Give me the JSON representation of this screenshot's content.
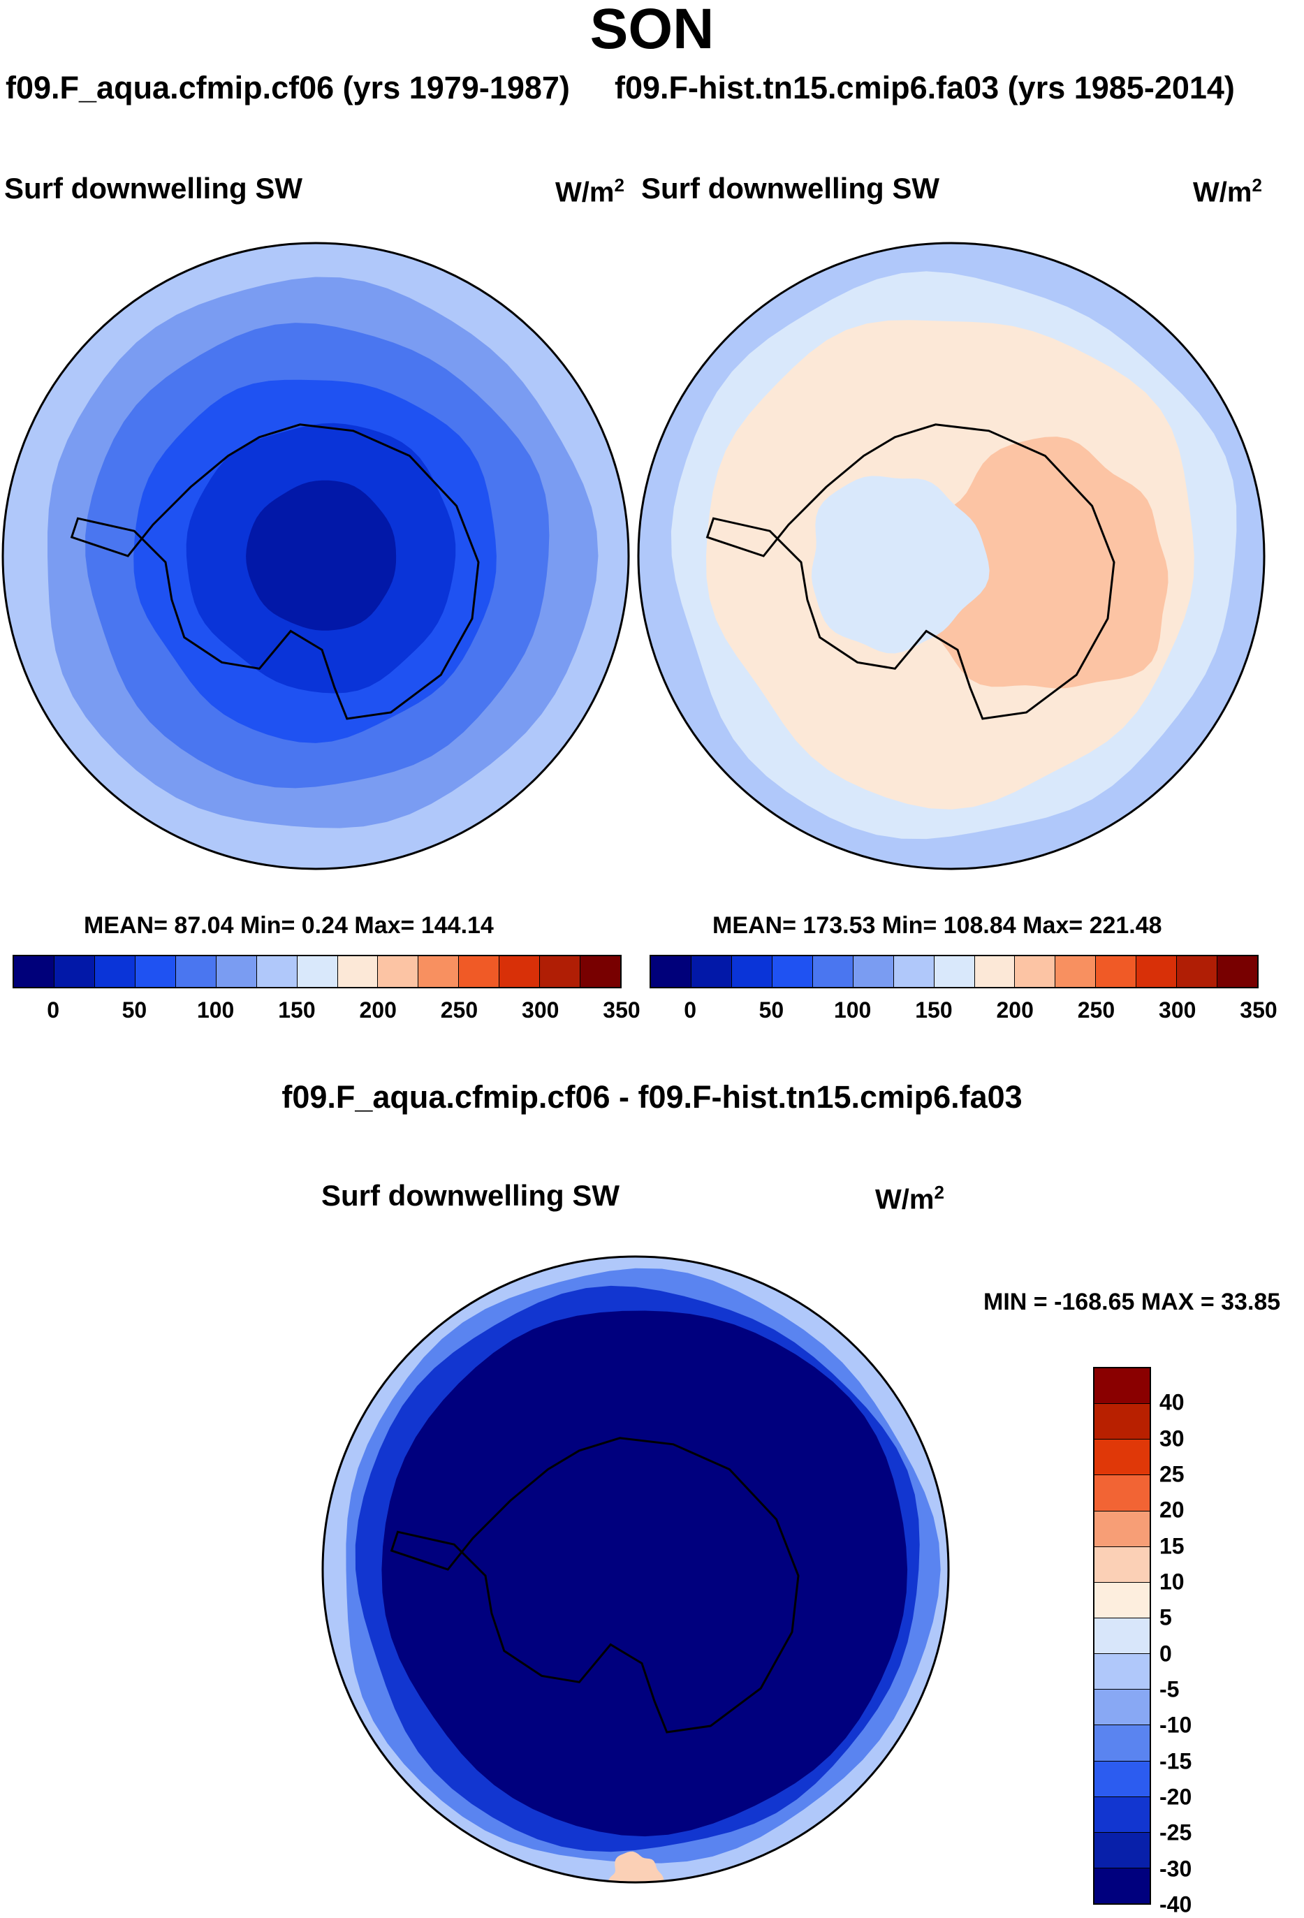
{
  "title": "SON",
  "panel_left": {
    "run_label": "f09.F_aqua.cfmip.cf06 (yrs 1979-1987)",
    "plot_title": "Surf downwelling SW",
    "units": "W/m",
    "units_exponent": "2",
    "stats_text": "MEAN=  87.04  Min=    0.24  Max= 144.14"
  },
  "panel_right": {
    "run_label": "f09.F-hist.tn15.cmip6.fa03 (yrs 1985-2014)",
    "plot_title": "Surf downwelling SW",
    "units": "W/m",
    "units_exponent": "2",
    "stats_text": "MEAN= 173.53  Min= 108.84  Max= 221.48"
  },
  "panel_diff": {
    "title": "f09.F_aqua.cfmip.cf06 - f09.F-hist.tn15.cmip6.fa03",
    "plot_title": "Surf downwelling SW",
    "units": "W/m",
    "units_exponent": "2",
    "minmax_text": "MIN = -168.65 MAX =  33.85"
  },
  "chart_data": [
    {
      "type": "heatmap",
      "name": "f09.F_aqua.cfmip.cf06 (yrs 1979-1987)",
      "title": "Surf downwelling SW",
      "units": "W/m2",
      "projection": "south-polar stereographic",
      "mean": 87.04,
      "min": 0.24,
      "max": 144.14,
      "contour_levels": [
        0,
        25,
        50,
        75,
        100,
        125,
        150,
        175,
        200,
        225,
        250,
        275,
        300,
        325,
        350
      ],
      "colorbar_labels": [
        "0",
        "50",
        "100",
        "150",
        "200",
        "250",
        "300",
        "350"
      ]
    },
    {
      "type": "heatmap",
      "name": "f09.F-hist.tn15.cmip6.fa03 (yrs 1985-2014)",
      "title": "Surf downwelling SW",
      "units": "W/m2",
      "projection": "south-polar stereographic",
      "mean": 173.53,
      "min": 108.84,
      "max": 221.48,
      "contour_levels": [
        0,
        25,
        50,
        75,
        100,
        125,
        150,
        175,
        200,
        225,
        250,
        275,
        300,
        325,
        350
      ],
      "colorbar_labels": [
        "0",
        "50",
        "100",
        "150",
        "200",
        "250",
        "300",
        "350"
      ]
    },
    {
      "type": "heatmap",
      "name": "f09.F_aqua.cfmip.cf06 - f09.F-hist.tn15.cmip6.fa03",
      "title": "Surf downwelling SW",
      "units": "W/m2",
      "projection": "south-polar stereographic",
      "min": -168.65,
      "max": 33.85,
      "contour_levels": [
        -40,
        -30,
        -25,
        -20,
        -15,
        -10,
        -5,
        0,
        5,
        10,
        15,
        20,
        25,
        30,
        40
      ],
      "colorbar_labels": [
        "40",
        "30",
        "25",
        "20",
        "15",
        "10",
        "5",
        "0",
        "-5",
        "-10",
        "-15",
        "-20",
        "-25",
        "-30",
        "-40"
      ]
    }
  ],
  "colors": {
    "abs_scale": [
      "#00007a",
      "#0218a8",
      "#0a34d8",
      "#1f52f2",
      "#4a76f0",
      "#7a9cf2",
      "#b0c8fa",
      "#d9e8fb",
      "#fce8d7",
      "#fcc4a4",
      "#f89060",
      "#f05a26",
      "#d83008",
      "#b01e05",
      "#780000"
    ],
    "diff_scale": [
      "#8a0000",
      "#b82000",
      "#e03808",
      "#f26434",
      "#f79e76",
      "#fbd0b6",
      "#fdeede",
      "#d8e6fa",
      "#b0c8fa",
      "#88a8f4",
      "#5a84f0",
      "#2c5cf0",
      "#1236d0",
      "#0820aa",
      "#00007e"
    ],
    "coastline": "#000000"
  }
}
